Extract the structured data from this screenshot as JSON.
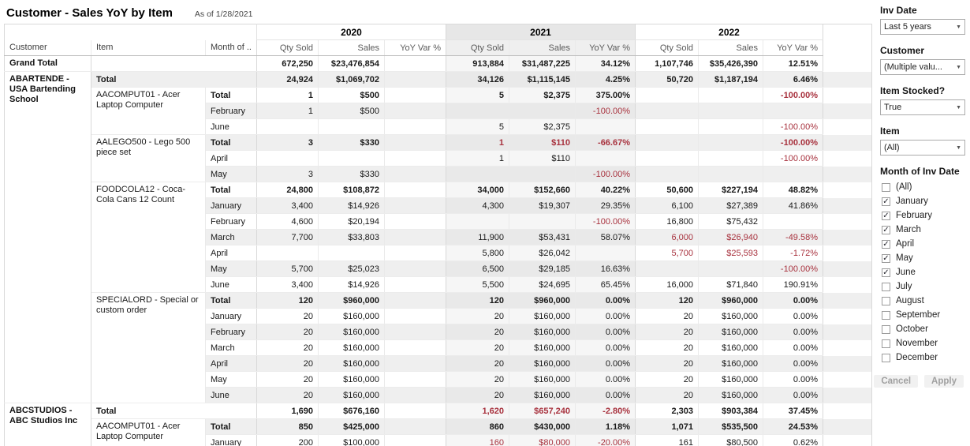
{
  "page": {
    "title": "Customer - Sales YoY by Item",
    "as_of": "As of 1/28/2021"
  },
  "colors": {
    "negative": "#a8323e",
    "band": "#efefef"
  },
  "table": {
    "left_headers": [
      "Customer",
      "Item",
      "Month of .."
    ],
    "years": [
      "2020",
      "2021",
      "2022"
    ],
    "measures": [
      "Qty Sold",
      "Sales",
      "YoY Var %"
    ],
    "groups": [
      {
        "customer": "Grand Total",
        "grand": true,
        "blocks": [
          {
            "item": "",
            "rows": [
              {
                "month": "",
                "cells": [
                  "672,250",
                  "$23,476,854",
                  "",
                  "913,884",
                  "$31,487,225",
                  "34.12%",
                  "1,107,746",
                  "$35,426,390",
                  "12.51%"
                ],
                "neg": []
              }
            ]
          }
        ]
      },
      {
        "customer": "ABARTENDE - USA Bartending School",
        "blocks": [
          {
            "item": "Total",
            "rows": [
              {
                "month": "",
                "cells": [
                  "24,924",
                  "$1,069,702",
                  "",
                  "34,126",
                  "$1,115,145",
                  "4.25%",
                  "50,720",
                  "$1,187,194",
                  "6.46%"
                ],
                "neg": []
              }
            ]
          },
          {
            "item": "AACOMPUT01 - Acer Laptop Computer",
            "rows": [
              {
                "month": "Total",
                "cells": [
                  "1",
                  "$500",
                  "",
                  "5",
                  "$2,375",
                  "375.00%",
                  "",
                  "",
                  "-100.00%"
                ],
                "neg": [
                  8
                ]
              },
              {
                "month": "February",
                "cells": [
                  "1",
                  "$500",
                  "",
                  "",
                  "",
                  "-100.00%",
                  "",
                  "",
                  ""
                ],
                "neg": [
                  5
                ]
              },
              {
                "month": "June",
                "cells": [
                  "",
                  "",
                  "",
                  "5",
                  "$2,375",
                  "",
                  "",
                  "",
                  "-100.00%"
                ],
                "neg": [
                  8
                ]
              }
            ]
          },
          {
            "item": "AALEGO500 - Lego 500 piece set",
            "rows": [
              {
                "month": "Total",
                "cells": [
                  "3",
                  "$330",
                  "",
                  "1",
                  "$110",
                  "-66.67%",
                  "",
                  "",
                  "-100.00%"
                ],
                "neg": [
                  3,
                  4,
                  5,
                  8
                ]
              },
              {
                "month": "April",
                "cells": [
                  "",
                  "",
                  "",
                  "1",
                  "$110",
                  "",
                  "",
                  "",
                  "-100.00%"
                ],
                "neg": [
                  8
                ]
              },
              {
                "month": "May",
                "cells": [
                  "3",
                  "$330",
                  "",
                  "",
                  "",
                  "-100.00%",
                  "",
                  "",
                  ""
                ],
                "neg": [
                  5
                ]
              }
            ]
          },
          {
            "item": "FOODCOLA12 - Coca-Cola Cans 12 Count",
            "rows": [
              {
                "month": "Total",
                "cells": [
                  "24,800",
                  "$108,872",
                  "",
                  "34,000",
                  "$152,660",
                  "40.22%",
                  "50,600",
                  "$227,194",
                  "48.82%"
                ],
                "neg": []
              },
              {
                "month": "January",
                "cells": [
                  "3,400",
                  "$14,926",
                  "",
                  "4,300",
                  "$19,307",
                  "29.35%",
                  "6,100",
                  "$27,389",
                  "41.86%"
                ],
                "neg": []
              },
              {
                "month": "February",
                "cells": [
                  "4,600",
                  "$20,194",
                  "",
                  "",
                  "",
                  "-100.00%",
                  "16,800",
                  "$75,432",
                  ""
                ],
                "neg": [
                  5
                ]
              },
              {
                "month": "March",
                "cells": [
                  "7,700",
                  "$33,803",
                  "",
                  "11,900",
                  "$53,431",
                  "58.07%",
                  "6,000",
                  "$26,940",
                  "-49.58%"
                ],
                "neg": [
                  6,
                  7,
                  8
                ]
              },
              {
                "month": "April",
                "cells": [
                  "",
                  "",
                  "",
                  "5,800",
                  "$26,042",
                  "",
                  "5,700",
                  "$25,593",
                  "-1.72%"
                ],
                "neg": [
                  6,
                  7,
                  8
                ]
              },
              {
                "month": "May",
                "cells": [
                  "5,700",
                  "$25,023",
                  "",
                  "6,500",
                  "$29,185",
                  "16.63%",
                  "",
                  "",
                  "-100.00%"
                ],
                "neg": [
                  8
                ]
              },
              {
                "month": "June",
                "cells": [
                  "3,400",
                  "$14,926",
                  "",
                  "5,500",
                  "$24,695",
                  "65.45%",
                  "16,000",
                  "$71,840",
                  "190.91%"
                ],
                "neg": []
              }
            ]
          },
          {
            "item": "SPECIALORD - Special or custom order",
            "rows": [
              {
                "month": "Total",
                "cells": [
                  "120",
                  "$960,000",
                  "",
                  "120",
                  "$960,000",
                  "0.00%",
                  "120",
                  "$960,000",
                  "0.00%"
                ],
                "neg": []
              },
              {
                "month": "January",
                "cells": [
                  "20",
                  "$160,000",
                  "",
                  "20",
                  "$160,000",
                  "0.00%",
                  "20",
                  "$160,000",
                  "0.00%"
                ],
                "neg": []
              },
              {
                "month": "February",
                "cells": [
                  "20",
                  "$160,000",
                  "",
                  "20",
                  "$160,000",
                  "0.00%",
                  "20",
                  "$160,000",
                  "0.00%"
                ],
                "neg": []
              },
              {
                "month": "March",
                "cells": [
                  "20",
                  "$160,000",
                  "",
                  "20",
                  "$160,000",
                  "0.00%",
                  "20",
                  "$160,000",
                  "0.00%"
                ],
                "neg": []
              },
              {
                "month": "April",
                "cells": [
                  "20",
                  "$160,000",
                  "",
                  "20",
                  "$160,000",
                  "0.00%",
                  "20",
                  "$160,000",
                  "0.00%"
                ],
                "neg": []
              },
              {
                "month": "May",
                "cells": [
                  "20",
                  "$160,000",
                  "",
                  "20",
                  "$160,000",
                  "0.00%",
                  "20",
                  "$160,000",
                  "0.00%"
                ],
                "neg": []
              },
              {
                "month": "June",
                "cells": [
                  "20",
                  "$160,000",
                  "",
                  "20",
                  "$160,000",
                  "0.00%",
                  "20",
                  "$160,000",
                  "0.00%"
                ],
                "neg": []
              }
            ]
          }
        ]
      },
      {
        "customer": "ABCSTUDIOS - ABC Studios Inc",
        "blocks": [
          {
            "item": "Total",
            "rows": [
              {
                "month": "",
                "cells": [
                  "1,690",
                  "$676,160",
                  "",
                  "1,620",
                  "$657,240",
                  "-2.80%",
                  "2,303",
                  "$903,384",
                  "37.45%"
                ],
                "neg": [
                  3,
                  4,
                  5
                ]
              }
            ]
          },
          {
            "item": "AACOMPUT01 - Acer Laptop Computer",
            "rows": [
              {
                "month": "Total",
                "cells": [
                  "850",
                  "$425,000",
                  "",
                  "860",
                  "$430,000",
                  "1.18%",
                  "1,071",
                  "$535,500",
                  "24.53%"
                ],
                "neg": []
              },
              {
                "month": "January",
                "cells": [
                  "200",
                  "$100,000",
                  "",
                  "160",
                  "$80,000",
                  "-20.00%",
                  "161",
                  "$80,500",
                  "0.62%"
                ],
                "neg": [
                  3,
                  4,
                  5
                ]
              }
            ]
          }
        ]
      }
    ]
  },
  "sidebar": {
    "filters": [
      {
        "label": "Inv Date",
        "value": "Last 5 years"
      },
      {
        "label": "Customer",
        "value": "(Multiple valu..."
      },
      {
        "label": "Item Stocked?",
        "value": "True"
      },
      {
        "label": "Item",
        "value": "(All)"
      },
      {
        "label": "Month of Inv Date",
        "options": [
          {
            "label": "(All)",
            "checked": false
          },
          {
            "label": "January",
            "checked": true
          },
          {
            "label": "February",
            "checked": true
          },
          {
            "label": "March",
            "checked": true
          },
          {
            "label": "April",
            "checked": true
          },
          {
            "label": "May",
            "checked": true
          },
          {
            "label": "June",
            "checked": true
          },
          {
            "label": "July",
            "checked": false
          },
          {
            "label": "August",
            "checked": false
          },
          {
            "label": "September",
            "checked": false
          },
          {
            "label": "October",
            "checked": false
          },
          {
            "label": "November",
            "checked": false
          },
          {
            "label": "December",
            "checked": false
          }
        ]
      }
    ],
    "buttons": {
      "cancel": "Cancel",
      "apply": "Apply"
    }
  }
}
